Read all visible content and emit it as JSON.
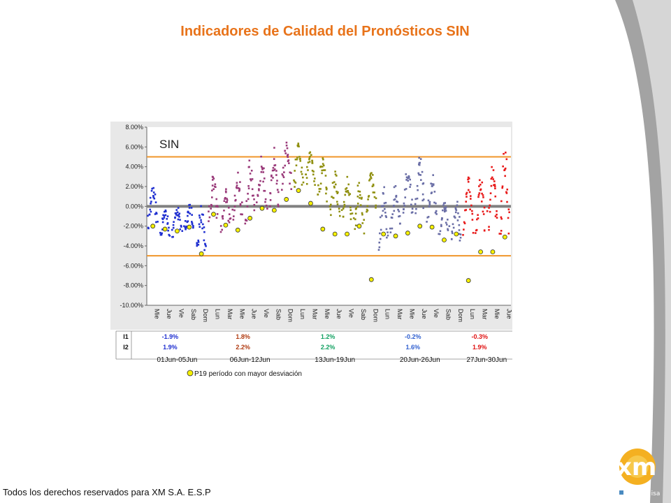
{
  "title": "Indicadores de Calidad del Pronósticos SIN",
  "footer": "Todos los derechos reservados para XM S.A. E.S.P",
  "logo": {
    "text": "xm",
    "tagline": "filial de isa"
  },
  "colors": {
    "title": "#e8731a",
    "threshold": "#f0952a",
    "zero_line": "#808080",
    "series": [
      "#1f2fd0",
      "#9a3a7a",
      "#909010",
      "#6a6ea6",
      "#e81a1a"
    ]
  },
  "chart_data": {
    "type": "scatter",
    "inset_label": "SIN",
    "ylim": [
      -10,
      8
    ],
    "y_ticks": [
      "8.00%",
      "6.00%",
      "4.00%",
      "2.00%",
      "0.00%",
      "-2.00%",
      "-4.00%",
      "-6.00%",
      "-8.00%",
      "-10.00%"
    ],
    "x_day_labels": [
      "Mie",
      "Jue",
      "Vie",
      "Sab",
      "Dom",
      "Lun",
      "Mar",
      "Mie",
      "Jue",
      "Vie",
      "Sab",
      "Dom",
      "Lun",
      "Mar",
      "Mie",
      "Jue",
      "Vie",
      "Sab",
      "Dom",
      "Lun",
      "Mar",
      "Mie",
      "Jue",
      "Vie",
      "Sab",
      "Dom",
      "Lun",
      "Mar",
      "Mie",
      "Jue"
    ],
    "thresholds": [
      5,
      -5
    ],
    "week_groups": [
      {
        "period": "01Jun-05Jun",
        "days": 5,
        "I1": "-1.9%",
        "I2": "1.9%",
        "i1_color": "#1f2fd0",
        "i2_color": "#1f2fd0"
      },
      {
        "period": "06Jun-12Jun",
        "days": 7,
        "I1": "1.8%",
        "I2": "2.2%",
        "i1_color": "#b03a10",
        "i2_color": "#b03a10"
      },
      {
        "period": "13Jun-19Jun",
        "days": 7,
        "I1": "1.2%",
        "I2": "2.2%",
        "i1_color": "#10a060",
        "i2_color": "#10a060"
      },
      {
        "period": "20Jun-26Jun",
        "days": 7,
        "I1": "-0.2%",
        "I2": "1.6%",
        "i1_color": "#3060d0",
        "i2_color": "#3060d0"
      },
      {
        "period": "27Jun-30Jun",
        "days": 4,
        "I1": "-0.3%",
        "I2": "1.9%",
        "i1_color": "#e01010",
        "i2_color": "#e01010"
      }
    ],
    "row_labels": [
      "I1",
      "I2"
    ],
    "p19_legend": "P19  período con mayor desviación",
    "daily_profile": {
      "Mie": {
        "mean": -0.2,
        "amp": 1.6
      },
      "Jue": {
        "mean": -1.6,
        "amp": 1.2
      },
      "Vie": {
        "mean": -1.5,
        "amp": 1.3
      },
      "Sab": {
        "mean": -1.4,
        "amp": 1.3
      },
      "Dom": {
        "mean": -2.5,
        "amp": 2.0
      }
    },
    "series_days": [
      [
        [
          -0.2,
          1.6
        ],
        [
          -1.7,
          1.2
        ],
        [
          -1.5,
          1.3
        ],
        [
          -1.3,
          1.3
        ],
        [
          -2.6,
          2.1
        ]
      ],
      [
        [
          0.9,
          2.0
        ],
        [
          -0.4,
          1.7
        ],
        [
          0.8,
          2.0
        ],
        [
          1.3,
          2.6
        ],
        [
          2.5,
          2.4
        ],
        [
          2.7,
          2.5
        ],
        [
          4.1,
          1.8
        ]
      ],
      [
        [
          4.0,
          2.0
        ],
        [
          4.0,
          1.6
        ],
        [
          2.8,
          1.8
        ],
        [
          1.1,
          1.9
        ],
        [
          0.6,
          1.8
        ],
        [
          -0.1,
          2.0
        ],
        [
          1.6,
          1.8
        ]
      ],
      [
        [
          -1.2,
          2.8
        ],
        [
          -0.4,
          2.0
        ],
        [
          1.3,
          2.2
        ],
        [
          2.2,
          2.3
        ],
        [
          0.7,
          2.0
        ],
        [
          -1.3,
          1.5
        ],
        [
          -1.6,
          1.8
        ]
      ],
      [
        [
          0.1,
          2.3
        ],
        [
          0.4,
          2.4
        ],
        [
          1.0,
          2.6
        ],
        [
          1.1,
          3.5
        ]
      ]
    ],
    "p19_points": [
      {
        "day": 1,
        "y": -2.0
      },
      {
        "day": 2,
        "y": -2.3
      },
      {
        "day": 3,
        "y": -2.5
      },
      {
        "day": 4,
        "y": -2.1
      },
      {
        "day": 5,
        "y": -4.8
      },
      {
        "day": 6,
        "y": -0.8
      },
      {
        "day": 7,
        "y": -1.9
      },
      {
        "day": 8,
        "y": -2.4
      },
      {
        "day": 9,
        "y": -1.2
      },
      {
        "day": 10,
        "y": -0.2
      },
      {
        "day": 11,
        "y": -0.4
      },
      {
        "day": 12,
        "y": 0.7
      },
      {
        "day": 13,
        "y": 1.6
      },
      {
        "day": 14,
        "y": 0.3
      },
      {
        "day": 15,
        "y": -2.3
      },
      {
        "day": 16,
        "y": -2.8
      },
      {
        "day": 17,
        "y": -2.8
      },
      {
        "day": 18,
        "y": -2.0
      },
      {
        "day": 19,
        "y": -7.4
      },
      {
        "day": 20,
        "y": -2.8
      },
      {
        "day": 21,
        "y": -3.0
      },
      {
        "day": 22,
        "y": -2.7
      },
      {
        "day": 23,
        "y": -2.0
      },
      {
        "day": 24,
        "y": -2.1
      },
      {
        "day": 25,
        "y": -3.4
      },
      {
        "day": 26,
        "y": -2.8
      },
      {
        "day": 27,
        "y": -7.5
      },
      {
        "day": 28,
        "y": -4.6
      },
      {
        "day": 29,
        "y": -4.6
      },
      {
        "day": 30,
        "y": -3.1
      }
    ]
  }
}
